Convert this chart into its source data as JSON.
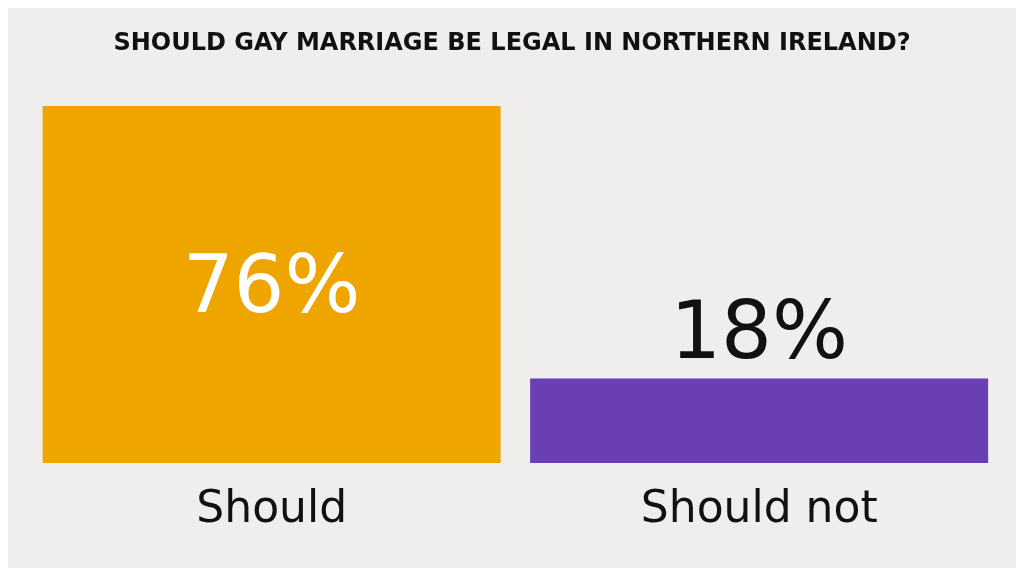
{
  "chart_data": {
    "type": "bar",
    "title": "SHOULD GAY MARRIAGE BE LEGAL IN NORTHERN IRELAND?",
    "categories": [
      "Should",
      "Should not"
    ],
    "values": [
      76,
      18
    ],
    "colors": [
      "#eea500",
      "#6a3fb3"
    ],
    "value_labels": [
      "76%",
      "18%"
    ]
  }
}
